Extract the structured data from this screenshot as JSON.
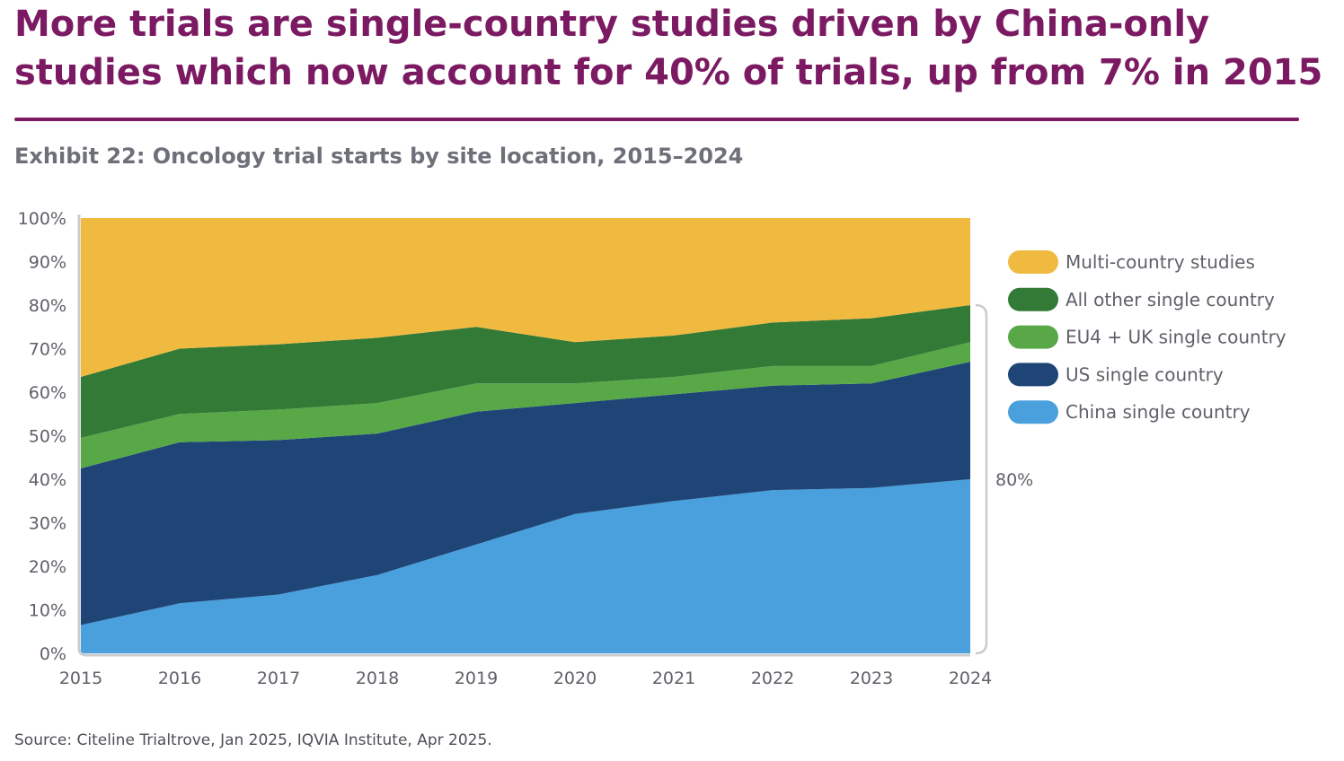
{
  "page": {
    "headline": "More trials are single-country studies driven by China-only studies which now account for 40% of trials, up from 7% in 2015",
    "subtitle": "Exhibit 22: Oncology trial starts by site location, 2015–2024",
    "source": "Source: Citeline Trialtrove, Jan 2025, IQVIA Institute, Apr 2025."
  },
  "chart_data": {
    "type": "area",
    "stacked": true,
    "title": "Exhibit 22: Oncology trial starts by site location, 2015–2024",
    "xlabel": "",
    "ylabel": "",
    "ylim": [
      0,
      100
    ],
    "y_ticks": [
      "0%",
      "10%",
      "20%",
      "30%",
      "40%",
      "50%",
      "60%",
      "70%",
      "80%",
      "90%",
      "100%"
    ],
    "categories": [
      "2015",
      "2016",
      "2017",
      "2018",
      "2019",
      "2020",
      "2021",
      "2022",
      "2023",
      "2024"
    ],
    "series": [
      {
        "name": "China single country",
        "color": "#4aa0dc",
        "values": [
          6.5,
          11.5,
          13.5,
          18,
          25,
          32,
          35,
          37.5,
          38,
          40
        ]
      },
      {
        "name": "US single country",
        "color": "#1e4576",
        "values": [
          36,
          37,
          35.5,
          32.5,
          30.5,
          25.5,
          24.5,
          24,
          24,
          27
        ]
      },
      {
        "name": "EU4 + UK single country",
        "color": "#58a848",
        "values": [
          7,
          6.5,
          7,
          7,
          6.5,
          4.5,
          4,
          4.5,
          4,
          4.5
        ]
      },
      {
        "name": "All other single country",
        "color": "#327a36",
        "values": [
          14,
          15,
          15,
          15,
          13,
          9.5,
          9.5,
          10,
          11,
          8.5
        ]
      },
      {
        "name": "Multi-country studies",
        "color": "#f0b940",
        "values": [
          36.5,
          30,
          29,
          27.5,
          25,
          28.5,
          27,
          24,
          23,
          20
        ]
      }
    ],
    "legend_position": "right",
    "annotation": {
      "label": "80%",
      "note": "bracket spanning single-country studies in 2024"
    }
  }
}
